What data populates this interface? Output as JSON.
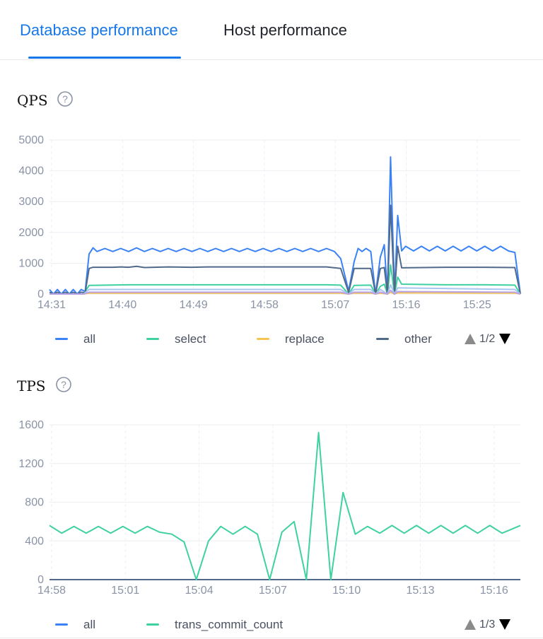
{
  "tabs": [
    {
      "label": "Database performance",
      "active": true
    },
    {
      "label": "Host performance",
      "active": false
    }
  ],
  "colors": {
    "accent": "#1677e8",
    "all": "#3b82f6",
    "select": "#3fd1a1",
    "replace": "#f5c451",
    "other": "#526a8a",
    "trans_commit_count": "#3fd1a1"
  },
  "qps": {
    "title": "QPS",
    "help_icon": "question-circle-icon",
    "legend": [
      {
        "name": "all",
        "color": "#3b82f6"
      },
      {
        "name": "select",
        "color": "#3fd1a1"
      },
      {
        "name": "replace",
        "color": "#f5c451"
      },
      {
        "name": "other",
        "color": "#526a8a"
      }
    ],
    "pager": "1/2",
    "chart_data": {
      "type": "line",
      "x_ticks": [
        "14:31",
        "14:40",
        "14:49",
        "14:58",
        "15:07",
        "15:16",
        "15:25"
      ],
      "y_ticks": [
        "0",
        "1000",
        "2000",
        "3000",
        "4000",
        "5000"
      ],
      "ylim": [
        0,
        5000
      ],
      "grid": true,
      "x_range_minutes": [
        0,
        59.5
      ],
      "series": [
        {
          "name": "all",
          "color": "#3b82f6",
          "points": [
            [
              0,
              150
            ],
            [
              0.5,
              0
            ],
            [
              1,
              150
            ],
            [
              1.5,
              0
            ],
            [
              2,
              150
            ],
            [
              2.5,
              0
            ],
            [
              3,
              150
            ],
            [
              3.5,
              0
            ],
            [
              4,
              150
            ],
            [
              4.5,
              80
            ],
            [
              5,
              1300
            ],
            [
              5.5,
              1500
            ],
            [
              6,
              1380
            ],
            [
              7,
              1480
            ],
            [
              8,
              1380
            ],
            [
              9,
              1480
            ],
            [
              10,
              1380
            ],
            [
              11,
              1500
            ],
            [
              12,
              1380
            ],
            [
              13,
              1480
            ],
            [
              14,
              1380
            ],
            [
              15,
              1480
            ],
            [
              16,
              1380
            ],
            [
              17,
              1480
            ],
            [
              18,
              1380
            ],
            [
              19,
              1480
            ],
            [
              20,
              1380
            ],
            [
              21,
              1480
            ],
            [
              22,
              1380
            ],
            [
              23,
              1480
            ],
            [
              24,
              1380
            ],
            [
              25,
              1480
            ],
            [
              26,
              1380
            ],
            [
              27,
              1480
            ],
            [
              28,
              1380
            ],
            [
              29,
              1480
            ],
            [
              30,
              1380
            ],
            [
              31,
              1480
            ],
            [
              32,
              1380
            ],
            [
              33,
              1480
            ],
            [
              34,
              1380
            ],
            [
              35,
              1480
            ],
            [
              36,
              1380
            ],
            [
              36.8,
              1150
            ],
            [
              37.8,
              100
            ],
            [
              38.5,
              1050
            ],
            [
              39,
              1480
            ],
            [
              39.5,
              1380
            ],
            [
              40,
              1480
            ],
            [
              40.6,
              1380
            ],
            [
              41.2,
              0
            ],
            [
              41.8,
              1200
            ],
            [
              42.3,
              1600
            ],
            [
              42.7,
              0
            ],
            [
              43.1,
              4450
            ],
            [
              43.6,
              0
            ],
            [
              44,
              2550
            ],
            [
              44.5,
              1400
            ],
            [
              45,
              1550
            ],
            [
              46,
              1400
            ],
            [
              47,
              1550
            ],
            [
              48,
              1400
            ],
            [
              49,
              1550
            ],
            [
              50,
              1400
            ],
            [
              51,
              1550
            ],
            [
              52,
              1400
            ],
            [
              53,
              1550
            ],
            [
              54,
              1400
            ],
            [
              55,
              1550
            ],
            [
              56,
              1400
            ],
            [
              57,
              1550
            ],
            [
              58,
              1400
            ],
            [
              58.8,
              1350
            ],
            [
              59.5,
              0
            ]
          ]
        },
        {
          "name": "select",
          "color": "#3fd1a1",
          "points": [
            [
              0,
              0
            ],
            [
              4.3,
              0
            ],
            [
              5,
              280
            ],
            [
              10,
              300
            ],
            [
              15,
              300
            ],
            [
              20,
              300
            ],
            [
              25,
              300
            ],
            [
              30,
              300
            ],
            [
              35,
              300
            ],
            [
              36.8,
              290
            ],
            [
              37.8,
              0
            ],
            [
              38.5,
              280
            ],
            [
              40.6,
              290
            ],
            [
              41.2,
              0
            ],
            [
              41.8,
              250
            ],
            [
              42.3,
              320
            ],
            [
              42.7,
              0
            ],
            [
              43.1,
              950
            ],
            [
              43.6,
              0
            ],
            [
              44,
              550
            ],
            [
              44.5,
              320
            ],
            [
              50,
              300
            ],
            [
              55,
              300
            ],
            [
              58.8,
              290
            ],
            [
              59.5,
              0
            ]
          ]
        },
        {
          "name": "replace",
          "color": "#f5c451",
          "points": [
            [
              0,
              0
            ],
            [
              4.3,
              0
            ],
            [
              5,
              30
            ],
            [
              36.8,
              30
            ],
            [
              37.8,
              0
            ],
            [
              38.5,
              30
            ],
            [
              40.6,
              30
            ],
            [
              41.2,
              0
            ],
            [
              41.8,
              30
            ],
            [
              42.7,
              0
            ],
            [
              43.1,
              60
            ],
            [
              43.6,
              0
            ],
            [
              44,
              40
            ],
            [
              58.8,
              30
            ],
            [
              59.5,
              0
            ]
          ]
        },
        {
          "name": "other",
          "color": "#526a8a",
          "points": [
            [
              0,
              60
            ],
            [
              0.5,
              0
            ],
            [
              1,
              60
            ],
            [
              1.5,
              0
            ],
            [
              2,
              60
            ],
            [
              2.5,
              0
            ],
            [
              3,
              60
            ],
            [
              3.5,
              0
            ],
            [
              4,
              60
            ],
            [
              4.5,
              40
            ],
            [
              5,
              830
            ],
            [
              5.5,
              870
            ],
            [
              8,
              870
            ],
            [
              9,
              880
            ],
            [
              10,
              870
            ],
            [
              11,
              900
            ],
            [
              12,
              860
            ],
            [
              15,
              880
            ],
            [
              18,
              870
            ],
            [
              20,
              880
            ],
            [
              25,
              880
            ],
            [
              30,
              880
            ],
            [
              35,
              880
            ],
            [
              36.8,
              830
            ],
            [
              37.8,
              50
            ],
            [
              38.5,
              830
            ],
            [
              40.6,
              830
            ],
            [
              41.2,
              0
            ],
            [
              41.8,
              830
            ],
            [
              42.3,
              860
            ],
            [
              42.7,
              0
            ],
            [
              43.1,
              2880
            ],
            [
              43.6,
              0
            ],
            [
              44,
              1550
            ],
            [
              44.5,
              850
            ],
            [
              50,
              870
            ],
            [
              55,
              870
            ],
            [
              58.8,
              860
            ],
            [
              59.5,
              0
            ]
          ]
        },
        {
          "name": "",
          "color": "#a8c6f0",
          "points": [
            [
              0,
              0
            ],
            [
              4.3,
              0
            ],
            [
              5,
              150
            ],
            [
              36.8,
              150
            ],
            [
              37.8,
              0
            ],
            [
              38.5,
              150
            ],
            [
              40.6,
              150
            ],
            [
              41.2,
              0
            ],
            [
              41.8,
              150
            ],
            [
              42.7,
              0
            ],
            [
              43.1,
              300
            ],
            [
              43.6,
              0
            ],
            [
              44,
              200
            ],
            [
              58.8,
              150
            ],
            [
              59.5,
              0
            ]
          ]
        },
        {
          "name": "",
          "color": "#b9a2e6",
          "points": [
            [
              0,
              0
            ],
            [
              4.3,
              0
            ],
            [
              5,
              60
            ],
            [
              36.8,
              60
            ],
            [
              37.8,
              0
            ],
            [
              38.5,
              60
            ],
            [
              40.6,
              60
            ],
            [
              41.2,
              0
            ],
            [
              41.8,
              60
            ],
            [
              42.7,
              0
            ],
            [
              43.1,
              120
            ],
            [
              43.6,
              0
            ],
            [
              44,
              80
            ],
            [
              58.8,
              60
            ],
            [
              59.5,
              0
            ]
          ]
        }
      ]
    }
  },
  "tps": {
    "title": "TPS",
    "help_icon": "question-circle-icon",
    "legend": [
      {
        "name": "all",
        "color": "#3b82f6"
      },
      {
        "name": "trans_commit_count",
        "color": "#3fd1a1"
      }
    ],
    "pager": "1/3",
    "chart_data": {
      "type": "line",
      "x_ticks": [
        "14:58",
        "15:01",
        "15:04",
        "15:07",
        "15:10",
        "15:13",
        "15:16"
      ],
      "y_ticks": [
        "0",
        "400",
        "800",
        "1200",
        "1600"
      ],
      "ylim": [
        0,
        1600
      ],
      "grid": true,
      "x_range_minutes": [
        0,
        19.25
      ],
      "series": [
        {
          "name": "all",
          "color": "#526a8a",
          "points": [
            [
              0,
              0
            ],
            [
              19.25,
              0
            ]
          ]
        },
        {
          "name": "trans_commit_count",
          "color": "#3fd1a1",
          "points": [
            [
              0,
              560
            ],
            [
              0.5,
              480
            ],
            [
              1,
              550
            ],
            [
              1.5,
              480
            ],
            [
              2,
              550
            ],
            [
              2.5,
              480
            ],
            [
              3,
              550
            ],
            [
              3.5,
              480
            ],
            [
              4,
              550
            ],
            [
              4.5,
              490
            ],
            [
              5,
              470
            ],
            [
              5.5,
              390
            ],
            [
              6,
              0
            ],
            [
              6.5,
              400
            ],
            [
              7,
              550
            ],
            [
              7.5,
              470
            ],
            [
              8,
              550
            ],
            [
              8.5,
              470
            ],
            [
              9,
              0
            ],
            [
              9.5,
              490
            ],
            [
              10,
              600
            ],
            [
              10.5,
              0
            ],
            [
              11,
              1520
            ],
            [
              11.5,
              0
            ],
            [
              12,
              900
            ],
            [
              12.5,
              470
            ],
            [
              13,
              550
            ],
            [
              13.5,
              480
            ],
            [
              14,
              560
            ],
            [
              14.5,
              480
            ],
            [
              15,
              560
            ],
            [
              15.5,
              480
            ],
            [
              16,
              560
            ],
            [
              16.5,
              480
            ],
            [
              17,
              560
            ],
            [
              17.5,
              480
            ],
            [
              18,
              560
            ],
            [
              18.5,
              480
            ],
            [
              19.25,
              560
            ]
          ]
        }
      ]
    }
  }
}
